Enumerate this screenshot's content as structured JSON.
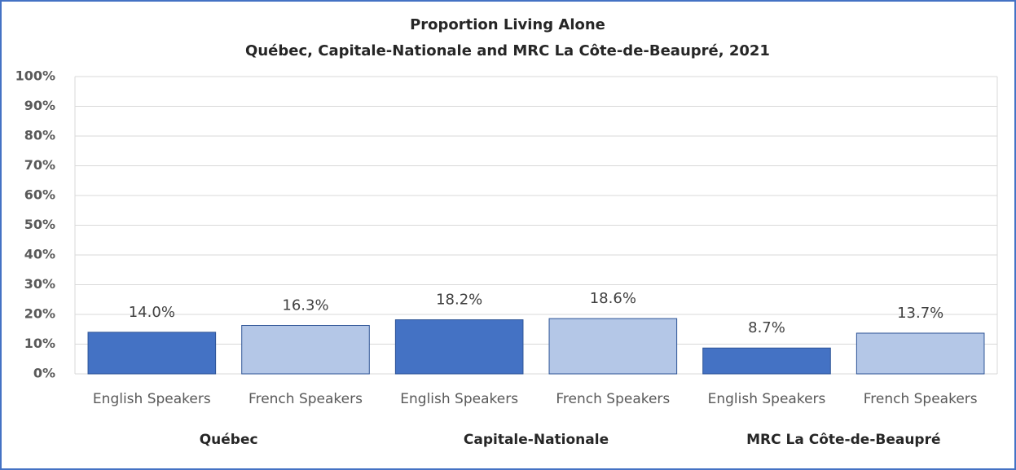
{
  "chart_data": {
    "type": "bar",
    "title": "Proportion Living Alone",
    "subtitle": "Québec, Capitale-Nationale and MRC La Côte-de-Beaupré, 2021",
    "categories": [
      "English Speakers",
      "French Speakers",
      "English Speakers",
      "French Speakers",
      "English Speakers",
      "French Speakers"
    ],
    "groups": [
      "Québec",
      "Capitale-Nationale",
      "MRC La Côte-de-Beaupré"
    ],
    "values": [
      14.0,
      16.3,
      18.2,
      18.6,
      8.7,
      13.7
    ],
    "value_labels": [
      "14.0%",
      "16.3%",
      "18.2%",
      "18.6%",
      "8.7%",
      "13.7%"
    ],
    "colors": [
      "#4472c4",
      "#b4c7e7",
      "#4472c4",
      "#b4c7e7",
      "#4472c4",
      "#b4c7e7"
    ],
    "ylim": [
      0,
      100
    ],
    "yticks": [
      {
        "value": 0,
        "label": "0%"
      },
      {
        "value": 10,
        "label": "10%"
      },
      {
        "value": 20,
        "label": "20%"
      },
      {
        "value": 30,
        "label": "30%"
      },
      {
        "value": 40,
        "label": "40%"
      },
      {
        "value": 50,
        "label": "50%"
      },
      {
        "value": 60,
        "label": "60%"
      },
      {
        "value": 70,
        "label": "70%"
      },
      {
        "value": 80,
        "label": "80%"
      },
      {
        "value": 90,
        "label": "90%"
      },
      {
        "value": 100,
        "label": "100%"
      }
    ],
    "grid": true
  }
}
